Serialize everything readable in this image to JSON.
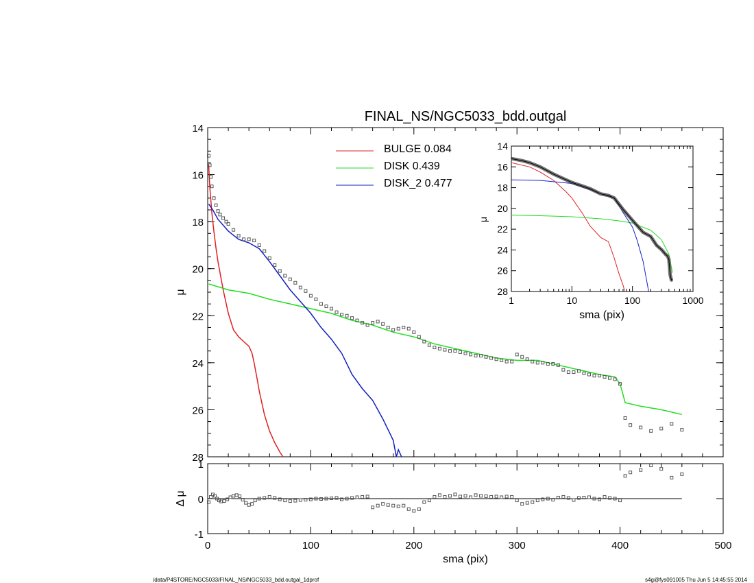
{
  "title": "FINAL_NS/NGC5033_bdd.outgal",
  "footer": {
    "left": "/data/P4STORE/NGC5033/FINAL_NS/NGC5033_bdd.outgal_1dprof",
    "right": "s4g@fys091005  Thu Jun  5 14:45:55 2014"
  },
  "colors": {
    "bulge": "#e02020",
    "disk": "#20dd20",
    "disk2": "#1020c0",
    "data": "#555555"
  },
  "legend": [
    {
      "label": "BULGE  0.084",
      "color": "#e02020"
    },
    {
      "label": "DISK  0.439",
      "color": "#20dd20"
    },
    {
      "label": "DISK_2  0.477",
      "color": "#1020c0"
    }
  ],
  "chart_data": [
    {
      "type": "line",
      "panel": "main",
      "xlabel": "sma (pix)",
      "ylabel": "μ",
      "xlim": [
        0,
        500
      ],
      "ylim": [
        28,
        14
      ],
      "xticks": [
        "0",
        "100",
        "200",
        "300",
        "400",
        "500"
      ],
      "yticks": [
        "14",
        "16",
        "18",
        "20",
        "22",
        "24",
        "26",
        "28"
      ],
      "series": [
        {
          "name": "BULGE",
          "x": [
            1,
            2,
            4,
            6,
            8,
            10,
            15,
            20,
            25,
            30,
            35,
            40,
            43,
            45,
            48,
            50,
            55,
            60,
            65,
            70,
            73
          ],
          "y": [
            15.6,
            16.5,
            17.6,
            18.4,
            19.1,
            19.7,
            20.9,
            21.9,
            22.6,
            22.9,
            23.1,
            23.3,
            23.6,
            24.0,
            24.7,
            25.2,
            26.2,
            26.9,
            27.4,
            27.8,
            28.0
          ]
        },
        {
          "name": "DISK",
          "x": [
            1,
            20,
            40,
            60,
            80,
            100,
            120,
            140,
            160,
            180,
            200,
            220,
            240,
            260,
            280,
            300,
            320,
            340,
            360,
            380,
            395,
            400,
            405,
            420,
            440,
            460
          ],
          "y": [
            20.65,
            20.9,
            21.05,
            21.3,
            21.5,
            21.7,
            21.9,
            22.2,
            22.4,
            22.7,
            22.9,
            23.2,
            23.4,
            23.6,
            23.8,
            23.9,
            23.9,
            24.1,
            24.3,
            24.5,
            24.6,
            24.9,
            25.7,
            25.85,
            26.0,
            26.2
          ]
        },
        {
          "name": "DISK_2",
          "x": [
            1,
            5,
            10,
            20,
            30,
            40,
            50,
            60,
            70,
            80,
            90,
            100,
            110,
            120,
            130,
            140,
            150,
            160,
            170,
            180,
            183,
            185,
            188
          ],
          "y": [
            17.25,
            17.5,
            17.9,
            18.4,
            18.75,
            18.9,
            19.15,
            19.7,
            20.3,
            20.9,
            21.4,
            21.9,
            22.5,
            23.0,
            23.6,
            24.5,
            25.1,
            25.6,
            26.4,
            27.3,
            28.0,
            27.7,
            28.0
          ]
        },
        {
          "name": "data",
          "x": [
            1,
            2,
            3,
            4,
            6,
            8,
            10,
            12,
            15,
            18,
            20,
            25,
            30,
            35,
            40,
            45,
            50,
            55,
            60,
            65,
            70,
            75,
            80,
            85,
            90,
            95,
            100,
            105,
            110,
            115,
            120,
            125,
            130,
            135,
            140,
            145,
            150,
            155,
            160,
            165,
            170,
            175,
            180,
            185,
            190,
            195,
            200,
            205,
            210,
            215,
            220,
            225,
            230,
            235,
            240,
            245,
            250,
            255,
            260,
            265,
            270,
            275,
            280,
            285,
            290,
            295,
            300,
            305,
            310,
            315,
            320,
            325,
            330,
            335,
            340,
            345,
            350,
            355,
            360,
            365,
            370,
            375,
            380,
            385,
            390,
            395,
            400,
            405,
            410,
            420,
            430,
            440,
            450,
            460
          ],
          "y": [
            15.2,
            15.6,
            16.1,
            16.5,
            17.0,
            17.3,
            17.55,
            17.7,
            17.85,
            18.0,
            18.1,
            18.35,
            18.6,
            18.75,
            18.75,
            18.8,
            19.0,
            19.25,
            19.55,
            19.85,
            20.1,
            20.3,
            20.45,
            20.6,
            20.8,
            20.95,
            21.15,
            21.3,
            21.5,
            21.6,
            21.7,
            21.85,
            21.95,
            22.0,
            22.1,
            22.2,
            22.3,
            22.4,
            22.3,
            22.25,
            22.35,
            22.5,
            22.6,
            22.55,
            22.5,
            22.55,
            22.7,
            22.9,
            23.1,
            23.25,
            23.35,
            23.4,
            23.45,
            23.5,
            23.5,
            23.55,
            23.6,
            23.65,
            23.7,
            23.7,
            23.75,
            23.8,
            23.85,
            23.9,
            23.95,
            23.95,
            23.65,
            23.75,
            23.85,
            23.95,
            24.0,
            24.0,
            24.05,
            24.05,
            24.1,
            24.3,
            24.4,
            24.4,
            24.35,
            24.45,
            24.5,
            24.55,
            24.55,
            24.6,
            24.65,
            24.7,
            24.9,
            26.35,
            26.65,
            26.75,
            26.9,
            26.8,
            26.6,
            26.85
          ]
        }
      ]
    },
    {
      "type": "line",
      "panel": "inset",
      "xlabel": "sma (pix)",
      "ylabel": "μ",
      "xscale": "log",
      "xlim": [
        1,
        1000
      ],
      "ylim": [
        28,
        14
      ],
      "xticks": [
        "1",
        "10",
        "100",
        "1000"
      ],
      "yticks": [
        "14",
        "16",
        "18",
        "20",
        "22",
        "24",
        "26",
        "28"
      ],
      "series": [
        {
          "name": "BULGE",
          "x": [
            1,
            2,
            3,
            5,
            8,
            10,
            15,
            20,
            30,
            40,
            45,
            50,
            60,
            70,
            75
          ],
          "y": [
            15.6,
            16.0,
            16.5,
            17.3,
            18.4,
            19.0,
            20.5,
            21.7,
            22.8,
            23.2,
            24.0,
            24.8,
            26.3,
            27.4,
            28.0
          ]
        },
        {
          "name": "DISK",
          "x": [
            1,
            3,
            10,
            30,
            60,
            100,
            200,
            300,
            400,
            460
          ],
          "y": [
            20.65,
            20.7,
            20.8,
            21.0,
            21.2,
            21.4,
            22.1,
            23.0,
            24.4,
            26.2
          ]
        },
        {
          "name": "DISK_2",
          "x": [
            1,
            3,
            10,
            20,
            30,
            50,
            70,
            100,
            120,
            150,
            170,
            185
          ],
          "y": [
            17.25,
            17.3,
            17.6,
            18.2,
            18.6,
            19.0,
            20.4,
            21.8,
            23.1,
            25.1,
            26.8,
            28.0
          ]
        },
        {
          "name": "data",
          "x": [
            1,
            1.5,
            2,
            3,
            4,
            5,
            7,
            10,
            15,
            20,
            30,
            40,
            50,
            70,
            100,
            150,
            200,
            250,
            300,
            350,
            380,
            400,
            420,
            440,
            460
          ],
          "y": [
            15.2,
            15.4,
            15.6,
            16.0,
            16.4,
            16.7,
            17.1,
            17.5,
            17.85,
            18.1,
            18.6,
            18.75,
            19.0,
            20.1,
            21.15,
            22.3,
            22.7,
            23.55,
            23.95,
            24.4,
            24.6,
            24.9,
            26.4,
            26.9,
            26.85
          ]
        }
      ]
    },
    {
      "type": "scatter",
      "panel": "residual",
      "xlabel": "sma (pix)",
      "ylabel": "Δ μ",
      "xlim": [
        0,
        500
      ],
      "ylim": [
        -1,
        1
      ],
      "yticks": [
        "-1",
        "0",
        "1"
      ],
      "series": [
        {
          "name": "residual",
          "x": [
            1,
            3,
            5,
            7,
            9,
            11,
            13,
            16,
            19,
            22,
            25,
            28,
            31,
            34,
            37,
            40,
            43,
            46,
            50,
            55,
            60,
            65,
            70,
            75,
            80,
            85,
            90,
            95,
            100,
            105,
            110,
            115,
            120,
            125,
            130,
            135,
            140,
            145,
            150,
            155,
            160,
            165,
            170,
            175,
            180,
            185,
            190,
            195,
            200,
            205,
            210,
            215,
            220,
            225,
            230,
            235,
            240,
            245,
            250,
            255,
            260,
            265,
            270,
            275,
            280,
            285,
            290,
            295,
            300,
            305,
            310,
            315,
            320,
            325,
            330,
            335,
            340,
            345,
            350,
            355,
            360,
            365,
            370,
            375,
            380,
            385,
            390,
            395,
            400,
            405,
            410,
            420,
            430,
            440,
            450,
            460
          ],
          "y": [
            -0.1,
            0.05,
            0.12,
            0.08,
            0.0,
            -0.05,
            -0.08,
            -0.07,
            -0.02,
            0.04,
            0.08,
            0.1,
            0.07,
            -0.03,
            -0.12,
            -0.18,
            -0.15,
            -0.05,
            0.0,
            0.02,
            0.05,
            0.02,
            -0.02,
            -0.05,
            -0.07,
            -0.06,
            -0.04,
            -0.03,
            -0.02,
            0.0,
            -0.01,
            0.0,
            0.01,
            0.02,
            -0.02,
            0.0,
            0.02,
            0.04,
            0.05,
            0.06,
            -0.25,
            -0.2,
            -0.15,
            -0.18,
            -0.2,
            -0.22,
            -0.2,
            -0.3,
            -0.35,
            -0.3,
            -0.1,
            -0.05,
            0.05,
            0.1,
            0.05,
            0.08,
            0.12,
            0.06,
            0.08,
            0.04,
            0.1,
            0.08,
            0.07,
            0.05,
            0.06,
            0.04,
            0.06,
            0.05,
            -0.05,
            -0.15,
            -0.12,
            -0.1,
            -0.05,
            -0.02,
            0.0,
            -0.03,
            0.03,
            0.05,
            0.02,
            -0.04,
            0.02,
            0.03,
            0.04,
            0.0,
            -0.02,
            0.05,
            0.02,
            0.0,
            -0.05,
            0.65,
            0.75,
            0.82,
            0.95,
            0.85,
            0.6,
            0.7
          ]
        }
      ]
    }
  ]
}
